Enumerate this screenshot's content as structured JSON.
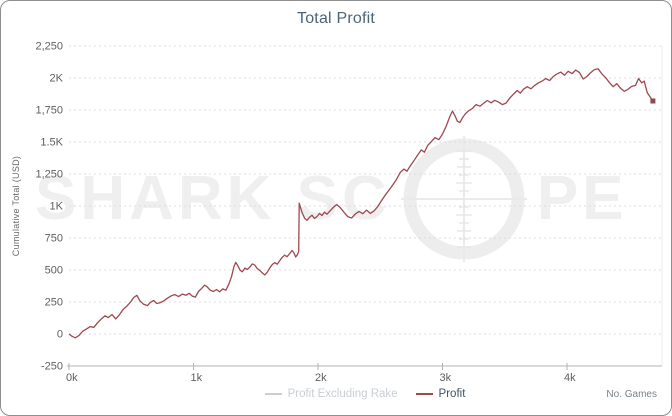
{
  "widget": {
    "title": "Total Profit"
  },
  "colors": {
    "border": "#8e8e8e",
    "title": "#4a6478",
    "axis_text": "#5d5d5d",
    "grid": "#dcdcdc",
    "axis_line": "#b3b3b3",
    "tick_mark": "#b3b3b3",
    "profit_line": "#a0474f",
    "end_marker": "#8d4a51",
    "legend_inactive": "#c9ced4",
    "legend_active_text": "#3d536a",
    "xlabel_text": "#76828e",
    "watermark": "#efefef"
  },
  "chart_data": {
    "type": "line",
    "title": "Total Profit",
    "xlabel": "No. Games",
    "ylabel": "Cumulative Total (USD)",
    "xlim": [
      0,
      4755
    ],
    "ylim": [
      -250,
      2250
    ],
    "grid": "horizontal-dashed",
    "legend_position": "bottom-center",
    "x_ticks": [
      {
        "value": 0,
        "label": "0k"
      },
      {
        "value": 1000,
        "label": "1k"
      },
      {
        "value": 2000,
        "label": "2k"
      },
      {
        "value": 3000,
        "label": "3k"
      },
      {
        "value": 4000,
        "label": "4k"
      }
    ],
    "y_ticks": [
      {
        "value": -250,
        "label": "-250"
      },
      {
        "value": 0,
        "label": "0"
      },
      {
        "value": 250,
        "label": "250"
      },
      {
        "value": 500,
        "label": "500"
      },
      {
        "value": 750,
        "label": "750"
      },
      {
        "value": 1000,
        "label": "1K"
      },
      {
        "value": 1250,
        "label": "1,250"
      },
      {
        "value": 1500,
        "label": "1.5K"
      },
      {
        "value": 1750,
        "label": "1,750"
      },
      {
        "value": 2000,
        "label": "2K"
      },
      {
        "value": 2250,
        "label": "2,250"
      }
    ],
    "legend": [
      {
        "label": "Profit Excluding Rake",
        "color": "#c9ced4",
        "active": false
      },
      {
        "label": "Profit",
        "color": "#a0474f",
        "active": true
      }
    ],
    "watermark": {
      "brand": "SharkScope",
      "left_text": "SHARK SC",
      "right_text": "PE"
    },
    "series": [
      {
        "name": "Profit",
        "color": "#a0474f",
        "points": [
          [
            0,
            0
          ],
          [
            25,
            -18
          ],
          [
            50,
            -30
          ],
          [
            80,
            -12
          ],
          [
            110,
            22
          ],
          [
            140,
            38
          ],
          [
            170,
            58
          ],
          [
            200,
            52
          ],
          [
            230,
            88
          ],
          [
            260,
            118
          ],
          [
            290,
            142
          ],
          [
            315,
            128
          ],
          [
            345,
            152
          ],
          [
            375,
            118
          ],
          [
            405,
            150
          ],
          [
            435,
            192
          ],
          [
            465,
            218
          ],
          [
            495,
            250
          ],
          [
            520,
            285
          ],
          [
            545,
            302
          ],
          [
            570,
            258
          ],
          [
            600,
            232
          ],
          [
            630,
            222
          ],
          [
            655,
            248
          ],
          [
            680,
            262
          ],
          [
            705,
            238
          ],
          [
            730,
            244
          ],
          [
            760,
            258
          ],
          [
            790,
            280
          ],
          [
            820,
            298
          ],
          [
            850,
            308
          ],
          [
            880,
            292
          ],
          [
            910,
            312
          ],
          [
            940,
            302
          ],
          [
            965,
            318
          ],
          [
            990,
            296
          ],
          [
            1015,
            288
          ],
          [
            1040,
            332
          ],
          [
            1065,
            356
          ],
          [
            1090,
            382
          ],
          [
            1110,
            368
          ],
          [
            1135,
            342
          ],
          [
            1160,
            332
          ],
          [
            1185,
            348
          ],
          [
            1210,
            330
          ],
          [
            1235,
            352
          ],
          [
            1260,
            342
          ],
          [
            1285,
            392
          ],
          [
            1305,
            448
          ],
          [
            1325,
            528
          ],
          [
            1340,
            560
          ],
          [
            1358,
            530
          ],
          [
            1375,
            498
          ],
          [
            1392,
            486
          ],
          [
            1412,
            515
          ],
          [
            1432,
            504
          ],
          [
            1452,
            522
          ],
          [
            1472,
            548
          ],
          [
            1492,
            538
          ],
          [
            1512,
            512
          ],
          [
            1532,
            498
          ],
          [
            1552,
            478
          ],
          [
            1572,
            462
          ],
          [
            1592,
            482
          ],
          [
            1612,
            515
          ],
          [
            1632,
            542
          ],
          [
            1652,
            558
          ],
          [
            1672,
            545
          ],
          [
            1692,
            572
          ],
          [
            1712,
            598
          ],
          [
            1732,
            616
          ],
          [
            1752,
            604
          ],
          [
            1772,
            628
          ],
          [
            1792,
            652
          ],
          [
            1806,
            636
          ],
          [
            1820,
            602
          ],
          [
            1834,
            618
          ],
          [
            1845,
            645
          ],
          [
            1849,
            1022
          ],
          [
            1860,
            986
          ],
          [
            1875,
            942
          ],
          [
            1892,
            905
          ],
          [
            1912,
            888
          ],
          [
            1932,
            912
          ],
          [
            1952,
            928
          ],
          [
            1972,
            902
          ],
          [
            1992,
            918
          ],
          [
            2012,
            942
          ],
          [
            2032,
            926
          ],
          [
            2052,
            952
          ],
          [
            2072,
            936
          ],
          [
            2096,
            962
          ],
          [
            2122,
            988
          ],
          [
            2150,
            1012
          ],
          [
            2180,
            986
          ],
          [
            2210,
            950
          ],
          [
            2240,
            916
          ],
          [
            2270,
            906
          ],
          [
            2300,
            938
          ],
          [
            2330,
            958
          ],
          [
            2360,
            940
          ],
          [
            2390,
            968
          ],
          [
            2420,
            942
          ],
          [
            2450,
            962
          ],
          [
            2480,
            996
          ],
          [
            2510,
            1042
          ],
          [
            2540,
            1084
          ],
          [
            2570,
            1124
          ],
          [
            2600,
            1164
          ],
          [
            2630,
            1206
          ],
          [
            2660,
            1262
          ],
          [
            2690,
            1288
          ],
          [
            2715,
            1272
          ],
          [
            2740,
            1312
          ],
          [
            2770,
            1354
          ],
          [
            2800,
            1398
          ],
          [
            2830,
            1438
          ],
          [
            2855,
            1420
          ],
          [
            2880,
            1472
          ],
          [
            2910,
            1502
          ],
          [
            2940,
            1534
          ],
          [
            2970,
            1518
          ],
          [
            3000,
            1562
          ],
          [
            3030,
            1624
          ],
          [
            3060,
            1702
          ],
          [
            3080,
            1742
          ],
          [
            3100,
            1704
          ],
          [
            3120,
            1662
          ],
          [
            3140,
            1652
          ],
          [
            3162,
            1692
          ],
          [
            3185,
            1722
          ],
          [
            3210,
            1744
          ],
          [
            3240,
            1762
          ],
          [
            3270,
            1792
          ],
          [
            3300,
            1780
          ],
          [
            3330,
            1802
          ],
          [
            3360,
            1824
          ],
          [
            3390,
            1806
          ],
          [
            3420,
            1826
          ],
          [
            3450,
            1812
          ],
          [
            3480,
            1792
          ],
          [
            3510,
            1804
          ],
          [
            3540,
            1842
          ],
          [
            3570,
            1874
          ],
          [
            3600,
            1902
          ],
          [
            3625,
            1882
          ],
          [
            3650,
            1912
          ],
          [
            3680,
            1932
          ],
          [
            3710,
            1916
          ],
          [
            3740,
            1942
          ],
          [
            3770,
            1962
          ],
          [
            3800,
            1976
          ],
          [
            3830,
            1996
          ],
          [
            3860,
            1980
          ],
          [
            3890,
            2012
          ],
          [
            3920,
            2032
          ],
          [
            3950,
            2046
          ],
          [
            3980,
            2022
          ],
          [
            4010,
            2052
          ],
          [
            4040,
            2034
          ],
          [
            4070,
            2062
          ],
          [
            4100,
            2042
          ],
          [
            4130,
            1992
          ],
          [
            4160,
            2012
          ],
          [
            4190,
            2042
          ],
          [
            4220,
            2066
          ],
          [
            4250,
            2072
          ],
          [
            4280,
            2032
          ],
          [
            4310,
            2002
          ],
          [
            4340,
            1966
          ],
          [
            4370,
            1932
          ],
          [
            4400,
            1956
          ],
          [
            4430,
            1920
          ],
          [
            4460,
            1896
          ],
          [
            4490,
            1912
          ],
          [
            4520,
            1934
          ],
          [
            4550,
            1942
          ],
          [
            4575,
            1996
          ],
          [
            4600,
            1962
          ],
          [
            4620,
            1976
          ],
          [
            4645,
            1884
          ],
          [
            4690,
            1820
          ]
        ]
      }
    ]
  }
}
